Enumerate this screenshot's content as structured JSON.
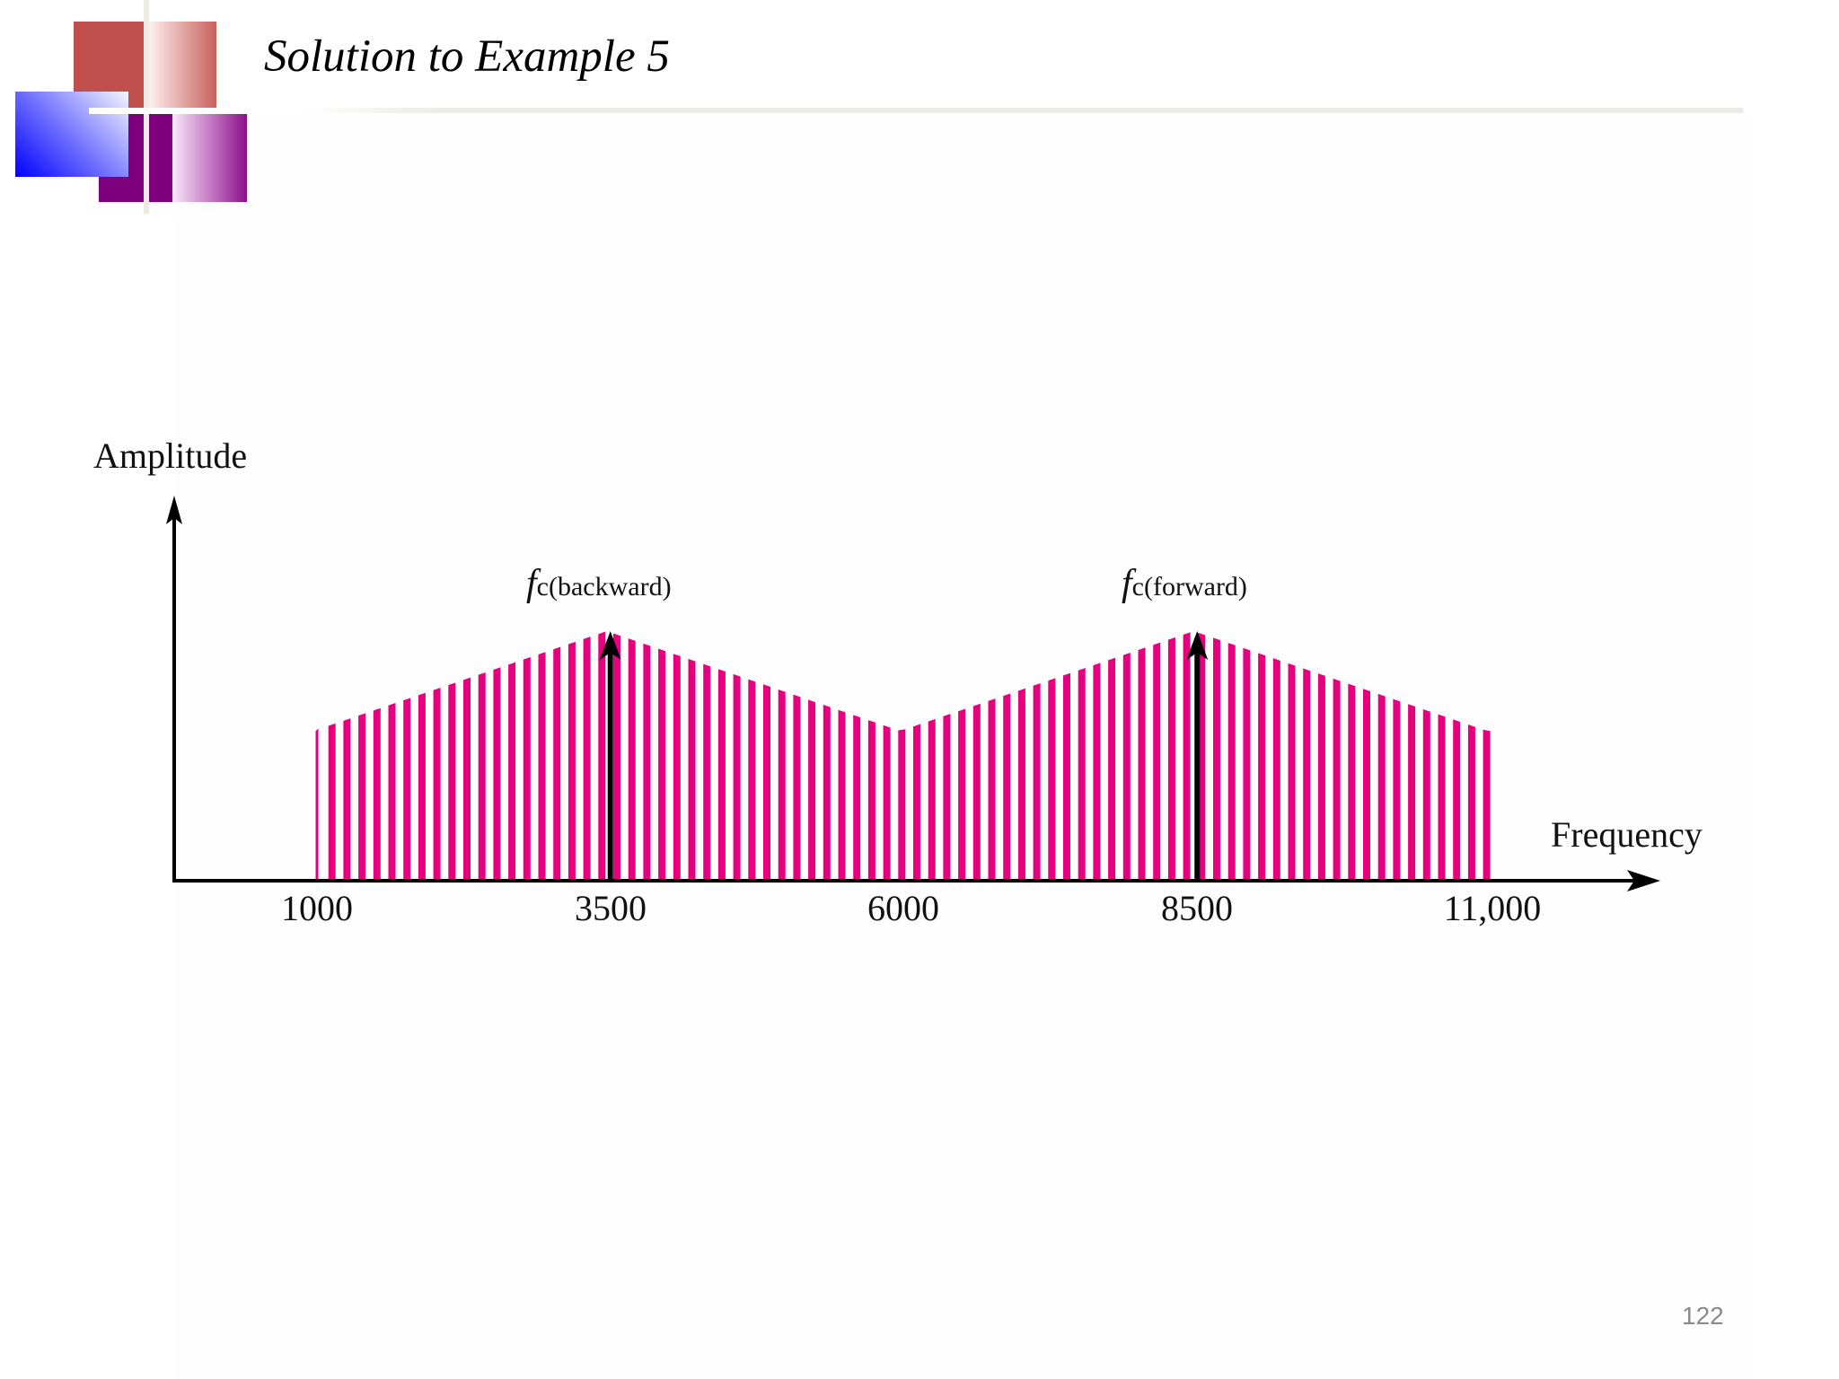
{
  "slide": {
    "title": "Solution to Example 5",
    "page_number": "122"
  },
  "colors": {
    "stripe": "#e6007e",
    "axis": "#000000",
    "logo_red": "#c0504d",
    "logo_purple": "#7e007e",
    "logo_blue": "#0000ff"
  },
  "chart_data": {
    "type": "bar",
    "title": "",
    "xlabel": "Frequency",
    "ylabel": "Amplitude",
    "x_ticks": [
      "1000",
      "3500",
      "6000",
      "8500",
      "11,000"
    ],
    "x_tick_values": [
      1000,
      3500,
      6000,
      8500,
      11000
    ],
    "xlim": [
      1000,
      11000
    ],
    "grid": false,
    "legend": null,
    "description": "Spectrum of two adjacent channels shown as dense vertical stripes; triangular envelopes peaking at carrier frequencies 3500 and 8500, minima at 1000, 6000 and 11,000",
    "envelope": {
      "x": [
        1000,
        3500,
        6000,
        8500,
        11000
      ],
      "relative_amplitude": [
        0.6,
        1.0,
        0.6,
        1.0,
        0.6
      ]
    },
    "carriers": [
      {
        "label_f": "f",
        "label_sub": "c(backward)",
        "frequency": 3500
      },
      {
        "label_f": "f",
        "label_sub": "c(forward)",
        "frequency": 8500
      }
    ],
    "bands": [
      {
        "from": 1000,
        "to": 6000,
        "peak": 3500
      },
      {
        "from": 6000,
        "to": 11000,
        "peak": 8500
      }
    ]
  }
}
